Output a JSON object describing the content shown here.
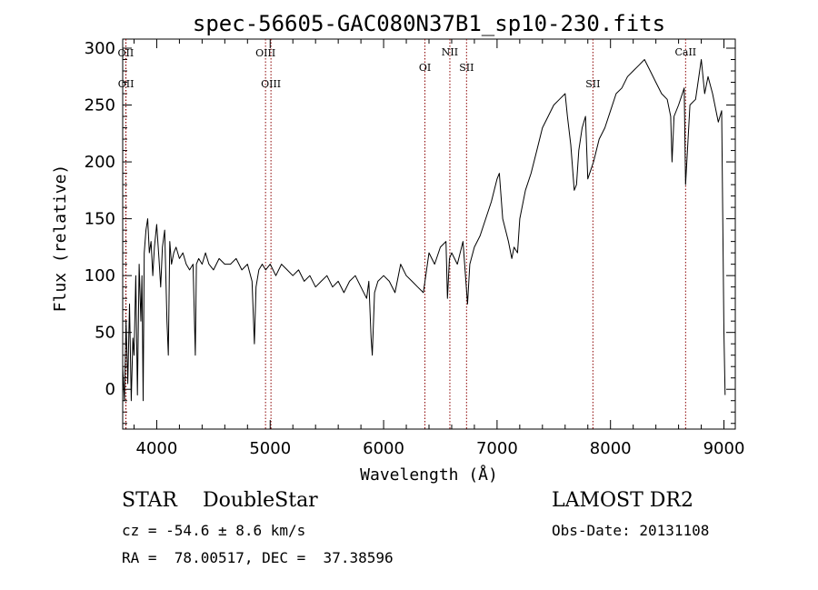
{
  "chart_data": {
    "type": "line",
    "title": "spec-56605-GAC080N37B1_sp10-230.fits",
    "xlabel": "Wavelength (Å)",
    "ylabel": "Flux (relative)",
    "xlim": [
      3700,
      9100
    ],
    "ylim": [
      -35,
      308
    ],
    "x_ticks": [
      4000,
      5000,
      6000,
      7000,
      8000,
      9000
    ],
    "y_ticks": [
      0,
      50,
      100,
      150,
      200,
      250,
      300
    ],
    "grid": false,
    "line_color": "#000000",
    "marker_color": "#8b0000",
    "series": [
      {
        "x": [
          3700,
          3715,
          3730,
          3745,
          3760,
          3775,
          3790,
          3800,
          3815,
          3830,
          3845,
          3860,
          3870,
          3880,
          3890,
          3905,
          3920,
          3935,
          3950,
          3965,
          3980,
          4000,
          4020,
          4035,
          4050,
          4070,
          4090,
          4102,
          4115,
          4130,
          4150,
          4170,
          4200,
          4230,
          4260,
          4290,
          4320,
          4340,
          4350,
          4370,
          4400,
          4430,
          4460,
          4500,
          4550,
          4600,
          4650,
          4700,
          4750,
          4800,
          4840,
          4861,
          4875,
          4900,
          4930,
          4960,
          5000,
          5050,
          5100,
          5150,
          5200,
          5250,
          5300,
          5350,
          5400,
          5450,
          5500,
          5550,
          5600,
          5650,
          5700,
          5750,
          5800,
          5850,
          5870,
          5890,
          5900,
          5920,
          5950,
          6000,
          6050,
          6100,
          6150,
          6200,
          6250,
          6300,
          6350,
          6400,
          6450,
          6500,
          6550,
          6563,
          6580,
          6600,
          6650,
          6700,
          6740,
          6760,
          6800,
          6850,
          6900,
          6950,
          7000,
          7020,
          7050,
          7100,
          7130,
          7150,
          7180,
          7200,
          7250,
          7300,
          7350,
          7400,
          7450,
          7500,
          7550,
          7600,
          7620,
          7650,
          7680,
          7700,
          7720,
          7750,
          7780,
          7800,
          7850,
          7900,
          7950,
          8000,
          8050,
          8100,
          8150,
          8200,
          8250,
          8300,
          8350,
          8400,
          8450,
          8500,
          8530,
          8542,
          8560,
          8600,
          8650,
          8662,
          8700,
          8750,
          8800,
          8830,
          8860,
          8900,
          8950,
          8980,
          9000,
          9010
        ],
        "y": [
          20,
          -10,
          60,
          5,
          75,
          -10,
          45,
          30,
          100,
          -5,
          110,
          60,
          100,
          -10,
          120,
          140,
          150,
          120,
          130,
          100,
          125,
          145,
          115,
          90,
          125,
          140,
          60,
          30,
          130,
          110,
          120,
          125,
          115,
          120,
          110,
          105,
          110,
          30,
          110,
          115,
          110,
          120,
          110,
          105,
          115,
          110,
          110,
          115,
          105,
          110,
          95,
          40,
          90,
          105,
          110,
          105,
          110,
          100,
          110,
          105,
          100,
          105,
          95,
          100,
          90,
          95,
          100,
          90,
          95,
          85,
          95,
          100,
          90,
          80,
          95,
          45,
          30,
          85,
          95,
          100,
          95,
          85,
          110,
          100,
          95,
          90,
          85,
          120,
          110,
          125,
          130,
          80,
          115,
          120,
          110,
          130,
          75,
          110,
          125,
          135,
          150,
          165,
          185,
          190,
          150,
          130,
          115,
          125,
          120,
          150,
          175,
          190,
          210,
          230,
          240,
          250,
          255,
          260,
          240,
          215,
          175,
          180,
          210,
          230,
          240,
          185,
          200,
          220,
          230,
          245,
          260,
          265,
          275,
          280,
          285,
          290,
          280,
          270,
          260,
          255,
          240,
          200,
          240,
          250,
          265,
          180,
          250,
          255,
          290,
          260,
          275,
          260,
          235,
          245,
          50,
          -5
        ]
      }
    ],
    "markers": [
      {
        "label": "OII",
        "x": 3727,
        "row": "upper"
      },
      {
        "label": "OII",
        "x": 3729,
        "row": "lower"
      },
      {
        "label": "OIII",
        "x": 4959,
        "row": "upper"
      },
      {
        "label": "OIII",
        "x": 5007,
        "row": "lower"
      },
      {
        "label": "OI",
        "x": 6364,
        "row": "middle"
      },
      {
        "label": "NII",
        "x": 6584,
        "row": "top"
      },
      {
        "label": "SII",
        "x": 6731,
        "row": "middle"
      },
      {
        "label": "SII",
        "x": 7845,
        "row": "lower"
      },
      {
        "label": "CaII",
        "x": 8662,
        "row": "top"
      }
    ]
  },
  "info": {
    "class_line": "STAR    DoubleStar",
    "survey": "LAMOST DR2",
    "cz_line": "cz = -54.6 ± 8.6 km/s",
    "obs_date_line": "Obs-Date: 20131108",
    "coords_line": "RA =  78.00517, DEC =  37.38596"
  }
}
